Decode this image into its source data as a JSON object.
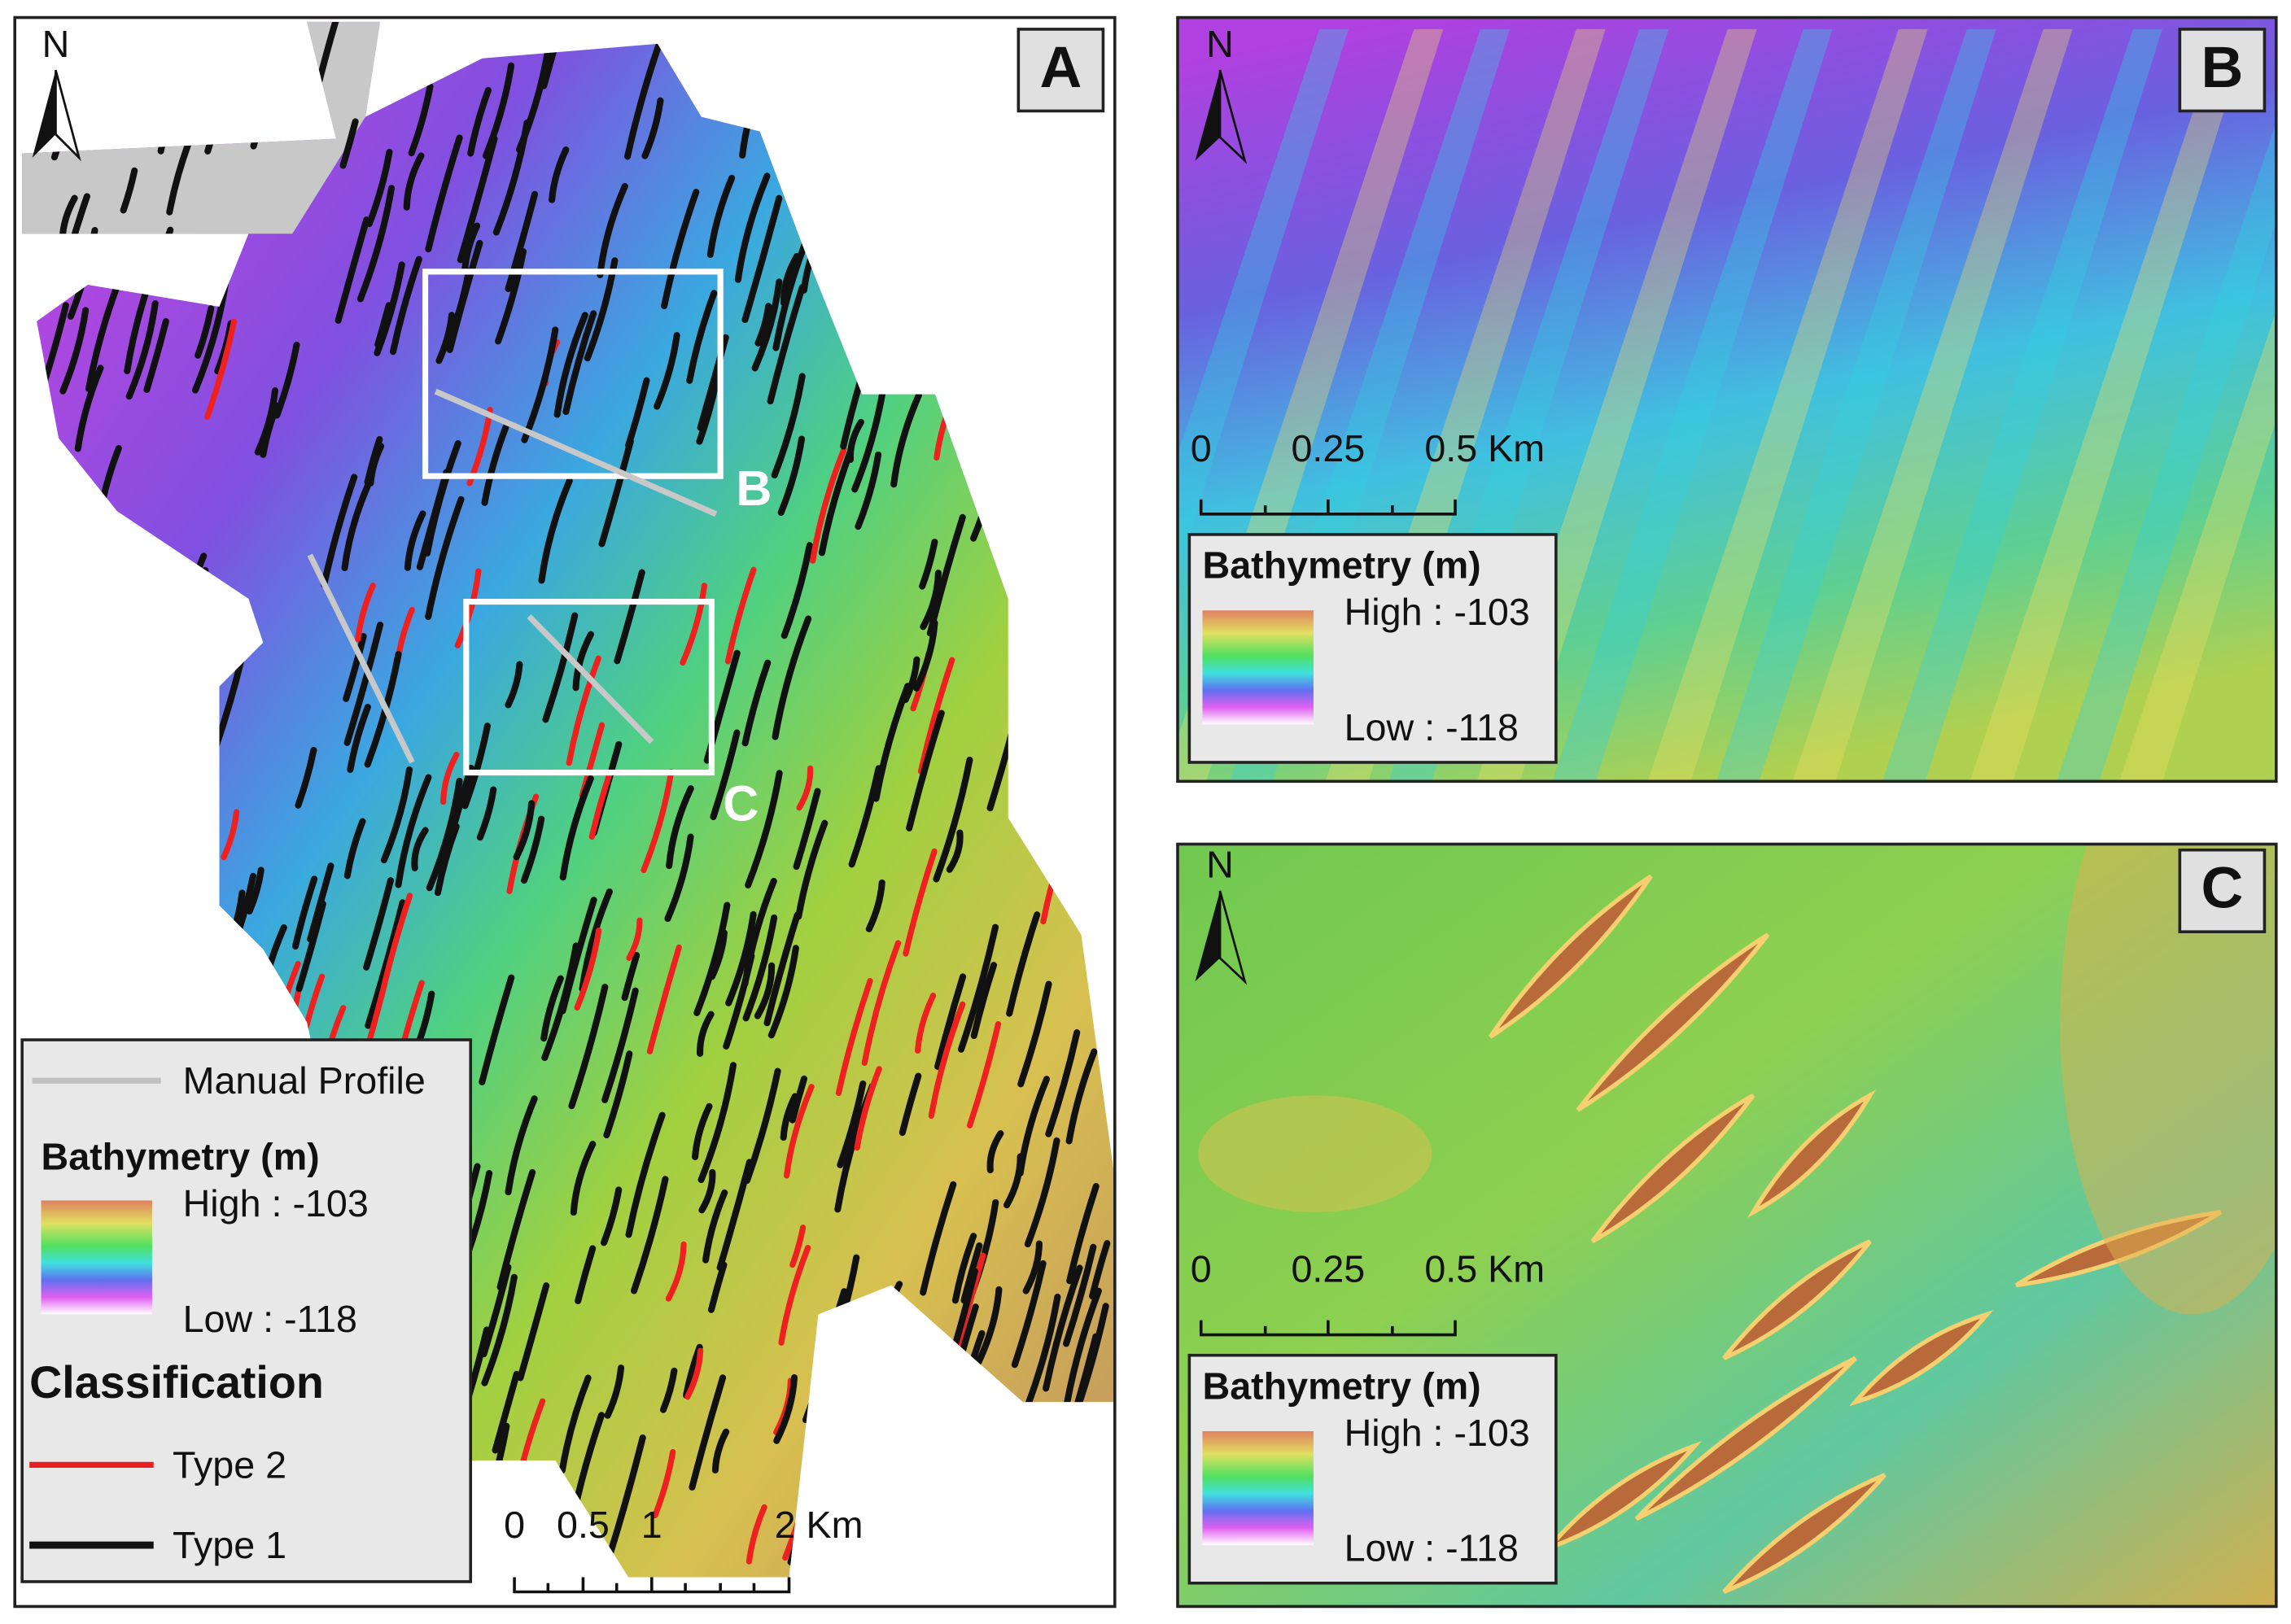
{
  "panels": [
    {
      "label": "A",
      "north": "N",
      "box_labels": [
        "B",
        "C"
      ],
      "legend": {
        "profile": "Manual Profile",
        "bathymetry_title": "Bathymetry (m)",
        "high": "High : -103",
        "low": "Low : -118",
        "classification_title": "Classification",
        "type2": "Type 2",
        "type1": "Type 1"
      },
      "scale_labels": [
        "0",
        "0.5",
        "1",
        "2 Km"
      ]
    },
    {
      "label": "B",
      "north": "N",
      "legend": {
        "bathymetry_title": "Bathymetry (m)",
        "high": "High : -103",
        "low": "Low : -118"
      },
      "scale_labels": [
        "0",
        "0.25",
        "0.5 Km"
      ]
    },
    {
      "label": "C",
      "north": "N",
      "legend": {
        "bathymetry_title": "Bathymetry (m)",
        "high": "High : -103",
        "low": "Low : -118"
      },
      "scale_labels": [
        "0",
        "0.25",
        "0.5 Km"
      ]
    }
  ]
}
